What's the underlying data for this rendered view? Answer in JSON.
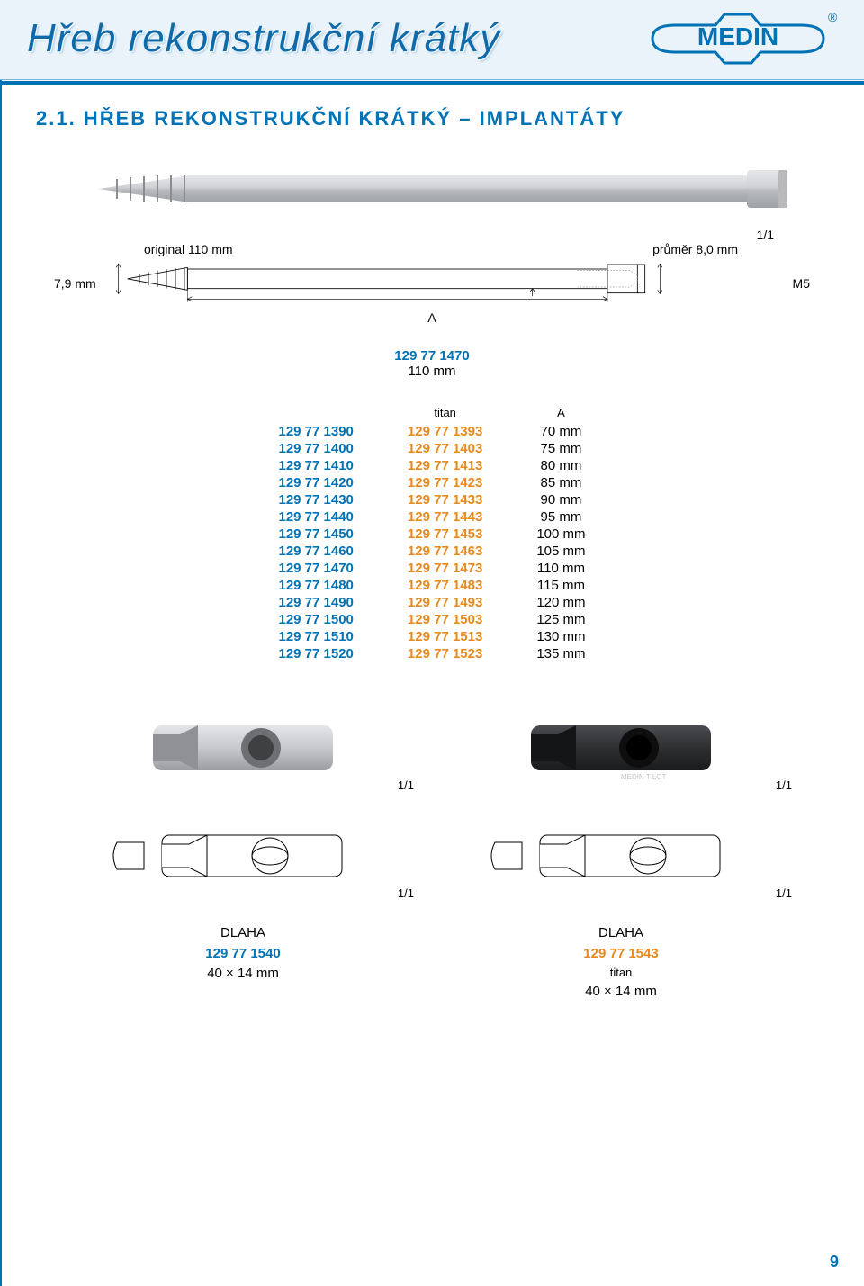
{
  "header": {
    "title": "Hřeb rekonstrukční krátký",
    "logo_text": "MEDIN",
    "logo_color": "#0072b6"
  },
  "section": {
    "title": "2.1. HŘEB REKONSTRUKČNÍ KRÁTKÝ – IMPLANTÁTY"
  },
  "nail_photo": {
    "scale": "1/1",
    "body_color": "#c9cbcd",
    "highlight_color": "#e6e7e9",
    "shadow_color": "#9fa2a5"
  },
  "original_row": {
    "left": "original 110 mm",
    "right": "průměr 8,0 mm"
  },
  "diagram": {
    "left_dim": "7,9 mm",
    "right_dim": "M5",
    "A_label": "A",
    "outline_color": "#000",
    "hatch_color": "#888"
  },
  "center_spec": {
    "code": "129 77 1470",
    "size": "110 mm"
  },
  "table": {
    "headers": [
      "",
      "titan",
      "A"
    ],
    "rows": [
      {
        "c1": "129 77 1390",
        "c2": "129 77 1393",
        "c3": "70 mm"
      },
      {
        "c1": "129 77 1400",
        "c2": "129 77 1403",
        "c3": "75 mm"
      },
      {
        "c1": "129 77 1410",
        "c2": "129 77 1413",
        "c3": "80 mm"
      },
      {
        "c1": "129 77 1420",
        "c2": "129 77 1423",
        "c3": "85 mm"
      },
      {
        "c1": "129 77 1430",
        "c2": "129 77 1433",
        "c3": "90 mm"
      },
      {
        "c1": "129 77 1440",
        "c2": "129 77 1443",
        "c3": "95 mm"
      },
      {
        "c1": "129 77 1450",
        "c2": "129 77 1453",
        "c3": "100 mm"
      },
      {
        "c1": "129 77 1460",
        "c2": "129 77 1463",
        "c3": "105 mm"
      },
      {
        "c1": "129 77 1470",
        "c2": "129 77 1473",
        "c3": "110 mm"
      },
      {
        "c1": "129 77 1480",
        "c2": "129 77 1483",
        "c3": "115 mm"
      },
      {
        "c1": "129 77 1490",
        "c2": "129 77 1493",
        "c3": "120 mm"
      },
      {
        "c1": "129 77 1500",
        "c2": "129 77 1503",
        "c3": "125 mm"
      },
      {
        "c1": "129 77 1510",
        "c2": "129 77 1513",
        "c3": "130 mm"
      },
      {
        "c1": "129 77 1520",
        "c2": "129 77 1523",
        "c3": "135 mm"
      }
    ],
    "c1_color": "#0072b6",
    "c2_color": "#e78a1e"
  },
  "plates": {
    "left": {
      "photo_color_body": "#c7c9cc",
      "photo_color_dark": "#8f9195",
      "caption_name": "DLAHA",
      "caption_code": "129 77 1540",
      "caption_size": "40 × 14 mm",
      "scale": "1/1"
    },
    "right": {
      "photo_color_body": "#2d2f31",
      "photo_color_dark": "#1a1b1d",
      "caption_name": "DLAHA",
      "caption_code": "129 77 1543",
      "caption_sub": "titan",
      "caption_size": "40 × 14 mm",
      "scale": "1/1"
    }
  },
  "page_number": "9"
}
